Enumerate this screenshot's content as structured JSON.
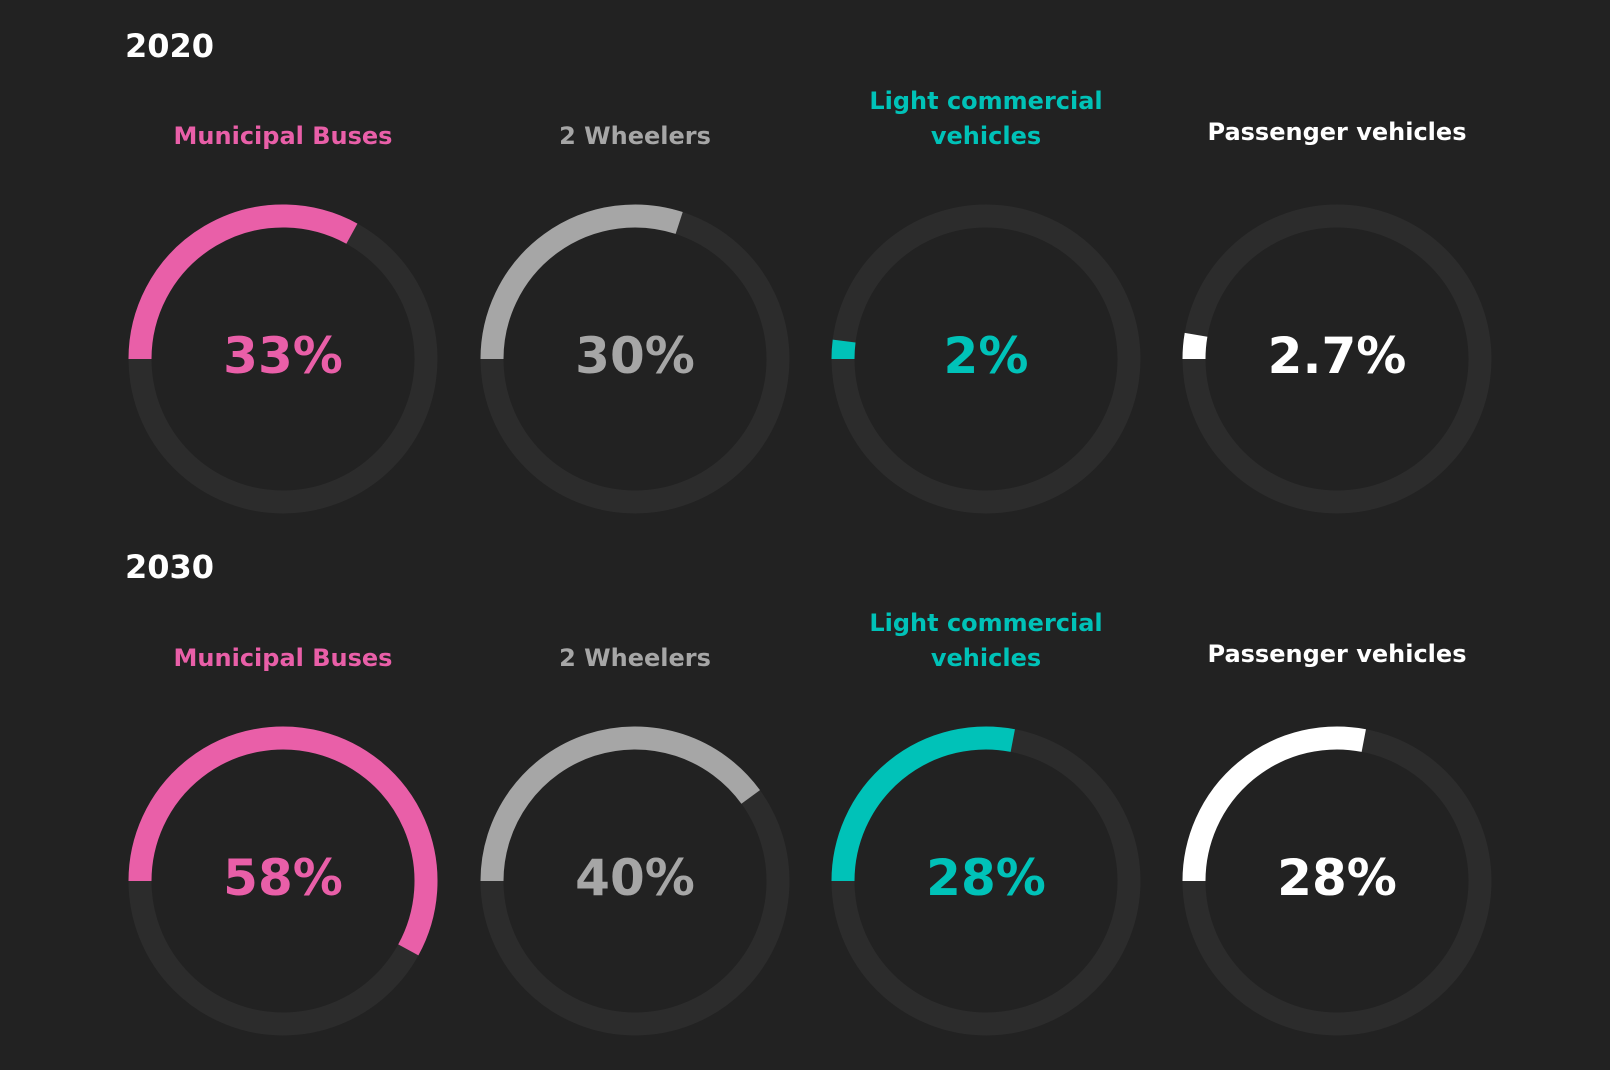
{
  "chart_data": [
    {
      "type": "donut",
      "title": "2020",
      "categories": [
        "Municipal Buses",
        "2 Wheelers",
        "Light commercial vehicles",
        "Passenger vehicles"
      ],
      "values": [
        33,
        30,
        2,
        2.7
      ],
      "value_labels": [
        "33%",
        "30%",
        "2%",
        "2.7%"
      ],
      "colors": [
        "#e95fa8",
        "#a6a6a6",
        "#00c2b8",
        "#ffffff"
      ],
      "range": [
        0,
        100
      ],
      "track_color": "#2c2c2c"
    },
    {
      "type": "donut",
      "title": "2030",
      "categories": [
        "Municipal Buses",
        "2 Wheelers",
        "Light commercial vehicles",
        "Passenger vehicles"
      ],
      "values": [
        58,
        40,
        28,
        28
      ],
      "value_labels": [
        "58%",
        "40%",
        "28%",
        "28%"
      ],
      "colors": [
        "#e95fa8",
        "#a6a6a6",
        "#00c2b8",
        "#ffffff"
      ],
      "range": [
        0,
        100
      ],
      "track_color": "#2c2c2c"
    }
  ],
  "label_lines": [
    [
      "Municipal Buses"
    ],
    [
      "2 Wheelers"
    ],
    [
      "Light commercial",
      "vehicles"
    ],
    [
      "Passenger vehicles"
    ]
  ],
  "background": "#222222"
}
